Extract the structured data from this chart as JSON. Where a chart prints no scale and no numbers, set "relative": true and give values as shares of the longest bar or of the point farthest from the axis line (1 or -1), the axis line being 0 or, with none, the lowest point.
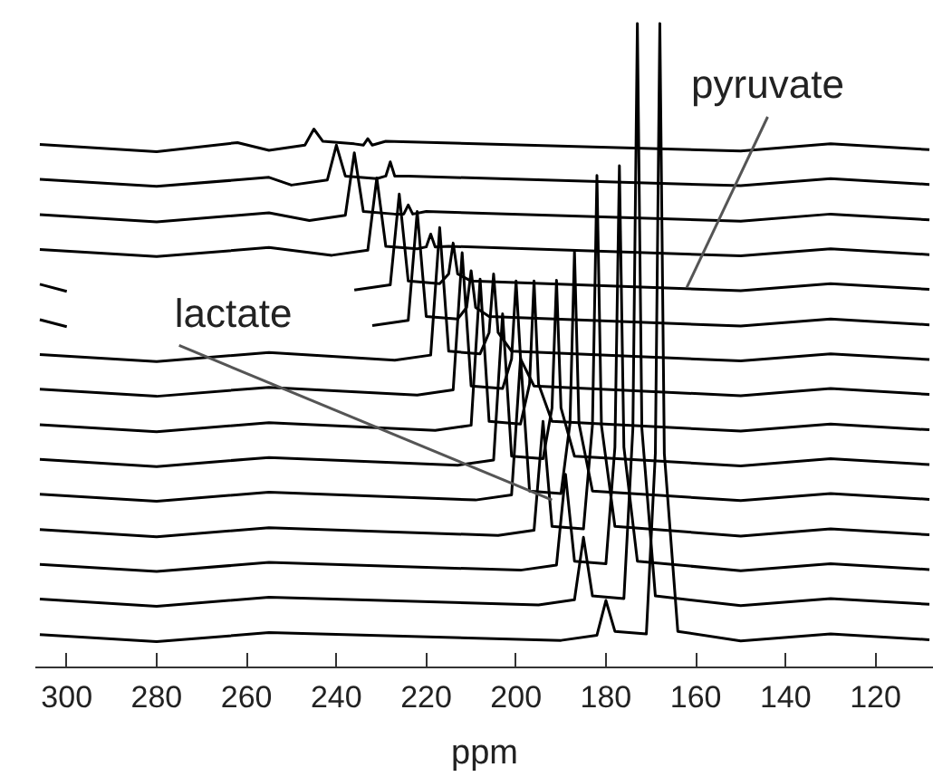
{
  "chart_data": {
    "type": "line",
    "relative": true,
    "xlabel": "ppm",
    "xlim": [
      307,
      107
    ],
    "xticks": [
      300,
      280,
      260,
      240,
      220,
      200,
      180,
      160,
      140,
      120
    ],
    "annotations": [
      {
        "text": "lactate",
        "x": 192,
        "y": 0.26
      },
      {
        "text": "pyruvate",
        "x": 162,
        "y": 0.59
      }
    ],
    "series": [
      {
        "color": "#000000",
        "x": [
          306,
          280,
          255,
          190,
          182,
          180,
          178,
          171,
          169,
          168,
          167,
          164,
          150,
          130,
          108
        ],
        "values": [
          0.051,
          0.04,
          0.054,
          0.042,
          0.05,
          0.104,
          0.056,
          0.052,
          0.332,
          1.0,
          0.332,
          0.056,
          0.041,
          0.052,
          0.043
        ]
      },
      {
        "color": "#000000",
        "x": [
          306,
          280,
          255,
          195,
          187,
          185,
          183,
          176,
          174,
          173,
          172,
          169,
          150,
          130,
          108
        ],
        "values": [
          0.106,
          0.095,
          0.109,
          0.097,
          0.105,
          0.202,
          0.111,
          0.107,
          0.371,
          1.0,
          0.371,
          0.111,
          0.096,
          0.107,
          0.098
        ]
      },
      {
        "color": "#000000",
        "x": [
          306,
          280,
          255,
          199,
          191,
          189,
          187,
          180,
          178,
          177,
          176,
          173,
          150,
          130,
          108
        ],
        "values": [
          0.16,
          0.149,
          0.163,
          0.151,
          0.159,
          0.3,
          0.165,
          0.161,
          0.342,
          0.779,
          0.342,
          0.165,
          0.15,
          0.161,
          0.152
        ]
      },
      {
        "color": "#000000",
        "x": [
          306,
          280,
          255,
          204,
          196,
          194,
          192,
          185,
          183,
          182,
          181,
          178,
          150,
          130,
          108
        ],
        "values": [
          0.214,
          0.203,
          0.217,
          0.205,
          0.213,
          0.382,
          0.219,
          0.215,
          0.376,
          0.764,
          0.376,
          0.219,
          0.204,
          0.215,
          0.206
        ]
      },
      {
        "color": "#000000",
        "x": [
          306,
          280,
          255,
          209,
          201,
          199,
          197,
          190,
          188,
          187,
          186,
          183,
          150,
          130,
          108
        ],
        "values": [
          0.269,
          0.258,
          0.272,
          0.26,
          0.268,
          0.481,
          0.274,
          0.27,
          0.379,
          0.646,
          0.379,
          0.274,
          0.259,
          0.27,
          0.261
        ]
      },
      {
        "color": "#000000",
        "x": [
          306,
          280,
          255,
          213,
          205,
          203,
          201,
          194,
          192,
          191,
          190,
          187,
          150,
          130,
          108
        ],
        "values": [
          0.323,
          0.312,
          0.326,
          0.314,
          0.322,
          0.549,
          0.328,
          0.324,
          0.403,
          0.601,
          0.403,
          0.328,
          0.313,
          0.324,
          0.315
        ]
      },
      {
        "color": "#000000",
        "x": [
          306,
          280,
          255,
          218,
          210,
          208,
          206,
          199,
          197,
          196,
          195,
          192,
          150,
          130,
          108
        ],
        "values": [
          0.377,
          0.366,
          0.38,
          0.368,
          0.376,
          0.603,
          0.382,
          0.378,
          0.44,
          0.6,
          0.44,
          0.382,
          0.367,
          0.378,
          0.369
        ]
      },
      {
        "color": "#000000",
        "x": [
          306,
          280,
          255,
          222,
          214,
          212,
          210,
          203,
          201,
          200,
          199,
          196,
          150,
          130,
          108
        ],
        "values": [
          0.432,
          0.421,
          0.435,
          0.423,
          0.431,
          0.644,
          0.437,
          0.433,
          0.479,
          0.6,
          0.479,
          0.437,
          0.422,
          0.433,
          0.424
        ]
      },
      {
        "color": "#000000",
        "x": [
          306,
          280,
          255,
          227,
          219,
          217,
          215,
          208,
          206,
          205,
          204,
          201,
          150,
          130,
          108
        ],
        "values": [
          0.486,
          0.475,
          0.489,
          0.477,
          0.485,
          0.683,
          0.491,
          0.487,
          0.52,
          0.611,
          0.52,
          0.491,
          0.476,
          0.487,
          0.478
        ]
      },
      {
        "color": "#000000",
        "x": [
          306,
          300,
          255,
          232,
          224,
          222,
          220,
          213,
          211,
          210,
          209,
          206,
          150,
          130,
          108
        ],
        "values": [
          0.54,
          0.529,
          null,
          0.531,
          0.539,
          0.708,
          0.545,
          0.541,
          0.559,
          0.616,
          0.559,
          0.545,
          0.53,
          0.541,
          0.532
        ]
      },
      {
        "color": "#000000",
        "x": [
          306,
          300,
          255,
          236,
          228,
          226,
          224,
          217,
          215,
          214,
          213,
          210,
          150,
          130,
          108
        ],
        "values": [
          0.595,
          0.584,
          null,
          0.586,
          0.594,
          0.735,
          0.6,
          0.596,
          0.611,
          0.659,
          0.611,
          0.6,
          0.585,
          0.596,
          0.587
        ]
      },
      {
        "color": "#000000",
        "x": [
          306,
          280,
          255,
          241,
          233,
          231,
          229,
          222,
          220,
          219,
          218,
          215,
          150,
          130,
          108
        ],
        "values": [
          0.649,
          0.638,
          0.652,
          0.64,
          0.648,
          0.76,
          0.654,
          0.65,
          0.653,
          0.673,
          0.653,
          0.654,
          0.639,
          0.65,
          0.641
        ]
      },
      {
        "color": "#000000",
        "x": [
          306,
          280,
          255,
          246,
          238,
          236,
          234,
          227,
          225,
          224,
          223,
          220,
          150,
          130,
          108
        ],
        "values": [
          0.703,
          0.692,
          0.706,
          0.694,
          0.702,
          0.799,
          0.708,
          0.704,
          0.704,
          0.718,
          0.704,
          0.708,
          0.693,
          0.704,
          0.695
        ]
      },
      {
        "color": "#000000",
        "x": [
          306,
          280,
          255,
          250,
          242,
          240,
          238,
          231,
          229,
          228,
          227,
          224,
          150,
          130,
          108
        ],
        "values": [
          0.758,
          0.747,
          0.761,
          0.749,
          0.757,
          0.811,
          0.763,
          0.759,
          0.763,
          0.785,
          0.763,
          0.763,
          0.748,
          0.759,
          0.75
        ]
      },
      {
        "color": "#000000",
        "x": [
          306,
          280,
          262,
          255,
          247,
          245,
          243,
          236,
          234,
          233,
          232,
          229,
          150,
          130,
          108
        ],
        "values": [
          0.812,
          0.801,
          0.815,
          0.803,
          0.811,
          0.836,
          0.817,
          0.813,
          0.811,
          0.821,
          0.811,
          0.817,
          0.802,
          0.813,
          0.804
        ]
      }
    ]
  }
}
